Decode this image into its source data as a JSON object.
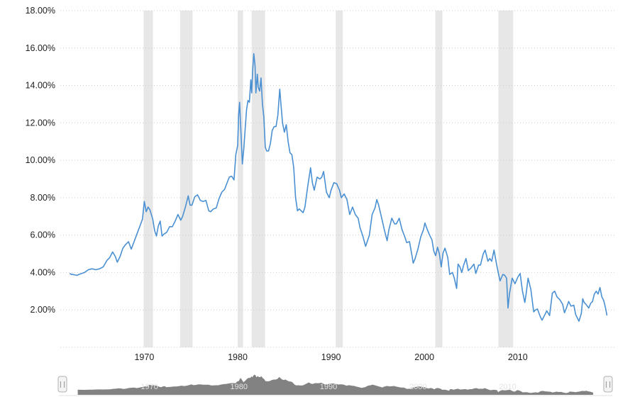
{
  "chart_data": {
    "type": "line",
    "title": "",
    "xlabel": "",
    "ylabel": "",
    "x_range": [
      1961.0,
      2020.5
    ],
    "y_range": [
      0,
      18
    ],
    "y_ticks": [
      2,
      4,
      6,
      8,
      10,
      12,
      14,
      16,
      18
    ],
    "y_tick_labels": [
      "2.00%",
      "4.00%",
      "6.00%",
      "8.00%",
      "10.00%",
      "12.00%",
      "14.00%",
      "16.00%",
      "18.00%"
    ],
    "x_ticks": [
      1970,
      1980,
      1990,
      2000,
      2010
    ],
    "x_tick_labels": [
      "1970",
      "1980",
      "1990",
      "2000",
      "2010"
    ],
    "grid": "horizontal-dotted",
    "legend": "none",
    "line_color": "#4a90d2",
    "grid_color": "#cccccc",
    "band_color": "#e7e7e7",
    "recession_bands": [
      [
        1969.92,
        1970.92
      ],
      [
        1973.83,
        1975.17
      ],
      [
        1980.0,
        1980.58
      ],
      [
        1981.5,
        1982.92
      ],
      [
        1990.5,
        1991.25
      ],
      [
        2001.17,
        2001.92
      ],
      [
        2007.92,
        2009.5
      ]
    ],
    "points": [
      [
        1962.0,
        3.95
      ],
      [
        1962.2,
        3.9
      ],
      [
        1962.5,
        3.88
      ],
      [
        1962.8,
        3.85
      ],
      [
        1963.0,
        3.9
      ],
      [
        1963.3,
        3.95
      ],
      [
        1963.6,
        4.0
      ],
      [
        1964.0,
        4.15
      ],
      [
        1964.4,
        4.2
      ],
      [
        1964.8,
        4.15
      ],
      [
        1965.2,
        4.2
      ],
      [
        1965.6,
        4.3
      ],
      [
        1966.0,
        4.65
      ],
      [
        1966.3,
        4.8
      ],
      [
        1966.6,
        5.1
      ],
      [
        1966.9,
        4.85
      ],
      [
        1967.1,
        4.55
      ],
      [
        1967.4,
        4.85
      ],
      [
        1967.7,
        5.3
      ],
      [
        1968.0,
        5.5
      ],
      [
        1968.3,
        5.65
      ],
      [
        1968.6,
        5.25
      ],
      [
        1968.9,
        5.65
      ],
      [
        1969.2,
        6.05
      ],
      [
        1969.5,
        6.45
      ],
      [
        1969.8,
        6.85
      ],
      [
        1970.0,
        7.8
      ],
      [
        1970.2,
        7.25
      ],
      [
        1970.4,
        7.5
      ],
      [
        1970.6,
        7.35
      ],
      [
        1970.9,
        6.85
      ],
      [
        1971.1,
        6.25
      ],
      [
        1971.3,
        5.95
      ],
      [
        1971.5,
        6.5
      ],
      [
        1971.7,
        6.75
      ],
      [
        1971.9,
        5.95
      ],
      [
        1972.1,
        6.05
      ],
      [
        1972.4,
        6.15
      ],
      [
        1972.7,
        6.45
      ],
      [
        1973.0,
        6.45
      ],
      [
        1973.3,
        6.75
      ],
      [
        1973.6,
        7.1
      ],
      [
        1973.9,
        6.8
      ],
      [
        1974.1,
        7.0
      ],
      [
        1974.4,
        7.5
      ],
      [
        1974.7,
        8.1
      ],
      [
        1974.9,
        7.6
      ],
      [
        1975.1,
        7.6
      ],
      [
        1975.4,
        8.05
      ],
      [
        1975.7,
        8.15
      ],
      [
        1976.0,
        7.85
      ],
      [
        1976.3,
        7.8
      ],
      [
        1976.6,
        7.85
      ],
      [
        1976.9,
        7.3
      ],
      [
        1977.1,
        7.25
      ],
      [
        1977.4,
        7.4
      ],
      [
        1977.7,
        7.45
      ],
      [
        1978.0,
        7.95
      ],
      [
        1978.3,
        8.3
      ],
      [
        1978.6,
        8.45
      ],
      [
        1978.9,
        8.85
      ],
      [
        1979.1,
        9.1
      ],
      [
        1979.35,
        9.15
      ],
      [
        1979.6,
        8.95
      ],
      [
        1979.8,
        10.3
      ],
      [
        1980.0,
        10.8
      ],
      [
        1980.1,
        12.4
      ],
      [
        1980.2,
        13.1
      ],
      [
        1980.35,
        11.5
      ],
      [
        1980.5,
        9.8
      ],
      [
        1980.65,
        10.6
      ],
      [
        1980.8,
        11.7
      ],
      [
        1980.95,
        12.7
      ],
      [
        1981.1,
        13.2
      ],
      [
        1981.25,
        13.1
      ],
      [
        1981.4,
        14.3
      ],
      [
        1981.5,
        13.6
      ],
      [
        1981.6,
        14.8
      ],
      [
        1981.72,
        15.7
      ],
      [
        1981.85,
        15.1
      ],
      [
        1981.95,
        13.6
      ],
      [
        1982.1,
        14.6
      ],
      [
        1982.2,
        13.9
      ],
      [
        1982.35,
        13.7
      ],
      [
        1982.5,
        14.4
      ],
      [
        1982.65,
        13.0
      ],
      [
        1982.8,
        12.3
      ],
      [
        1982.95,
        10.7
      ],
      [
        1983.1,
        10.5
      ],
      [
        1983.3,
        10.5
      ],
      [
        1983.5,
        10.9
      ],
      [
        1983.7,
        11.6
      ],
      [
        1983.9,
        11.8
      ],
      [
        1984.1,
        11.8
      ],
      [
        1984.3,
        12.4
      ],
      [
        1984.5,
        13.8
      ],
      [
        1984.65,
        12.9
      ],
      [
        1984.8,
        12.0
      ],
      [
        1985.0,
        11.5
      ],
      [
        1985.2,
        11.9
      ],
      [
        1985.4,
        11.0
      ],
      [
        1985.6,
        10.4
      ],
      [
        1985.8,
        10.3
      ],
      [
        1986.0,
        9.6
      ],
      [
        1986.2,
        8.0
      ],
      [
        1986.4,
        7.3
      ],
      [
        1986.6,
        7.4
      ],
      [
        1986.8,
        7.3
      ],
      [
        1987.0,
        7.2
      ],
      [
        1987.2,
        7.5
      ],
      [
        1987.5,
        8.6
      ],
      [
        1987.8,
        9.6
      ],
      [
        1988.0,
        8.8
      ],
      [
        1988.2,
        8.4
      ],
      [
        1988.5,
        9.1
      ],
      [
        1988.8,
        9.0
      ],
      [
        1989.0,
        9.1
      ],
      [
        1989.2,
        9.4
      ],
      [
        1989.5,
        8.3
      ],
      [
        1989.8,
        8.0
      ],
      [
        1990.0,
        8.4
      ],
      [
        1990.3,
        8.8
      ],
      [
        1990.6,
        8.75
      ],
      [
        1990.9,
        8.4
      ],
      [
        1991.1,
        8.0
      ],
      [
        1991.4,
        8.2
      ],
      [
        1991.7,
        7.9
      ],
      [
        1992.0,
        7.1
      ],
      [
        1992.3,
        7.5
      ],
      [
        1992.6,
        7.1
      ],
      [
        1992.9,
        6.9
      ],
      [
        1993.1,
        6.4
      ],
      [
        1993.4,
        5.95
      ],
      [
        1993.7,
        5.4
      ],
      [
        1993.9,
        5.7
      ],
      [
        1994.1,
        6.0
      ],
      [
        1994.4,
        7.1
      ],
      [
        1994.7,
        7.45
      ],
      [
        1994.9,
        7.9
      ],
      [
        1995.1,
        7.6
      ],
      [
        1995.4,
        6.95
      ],
      [
        1995.7,
        6.3
      ],
      [
        1996.0,
        5.7
      ],
      [
        1996.2,
        6.3
      ],
      [
        1996.5,
        6.9
      ],
      [
        1996.8,
        6.6
      ],
      [
        1997.0,
        6.6
      ],
      [
        1997.3,
        6.9
      ],
      [
        1997.6,
        6.3
      ],
      [
        1997.9,
        5.9
      ],
      [
        1998.1,
        5.6
      ],
      [
        1998.4,
        5.65
      ],
      [
        1998.7,
        4.8
      ],
      [
        1998.8,
        4.5
      ],
      [
        1999.0,
        4.75
      ],
      [
        1999.3,
        5.25
      ],
      [
        1999.6,
        5.9
      ],
      [
        1999.9,
        6.3
      ],
      [
        2000.05,
        6.65
      ],
      [
        2000.3,
        6.3
      ],
      [
        2000.55,
        6.0
      ],
      [
        2000.8,
        5.75
      ],
      [
        2001.0,
        5.15
      ],
      [
        2001.2,
        4.9
      ],
      [
        2001.4,
        5.35
      ],
      [
        2001.6,
        5.0
      ],
      [
        2001.8,
        4.3
      ],
      [
        2002.0,
        5.05
      ],
      [
        2002.2,
        5.3
      ],
      [
        2002.5,
        4.8
      ],
      [
        2002.7,
        3.9
      ],
      [
        2003.0,
        4.0
      ],
      [
        2003.2,
        3.7
      ],
      [
        2003.45,
        3.15
      ],
      [
        2003.6,
        4.45
      ],
      [
        2003.8,
        4.3
      ],
      [
        2004.0,
        4.0
      ],
      [
        2004.2,
        4.4
      ],
      [
        2004.45,
        4.75
      ],
      [
        2004.7,
        4.1
      ],
      [
        2005.0,
        4.25
      ],
      [
        2005.3,
        4.45
      ],
      [
        2005.5,
        3.95
      ],
      [
        2005.8,
        4.4
      ],
      [
        2006.0,
        4.4
      ],
      [
        2006.3,
        5.0
      ],
      [
        2006.5,
        5.2
      ],
      [
        2006.8,
        4.6
      ],
      [
        2007.0,
        4.75
      ],
      [
        2007.2,
        4.6
      ],
      [
        2007.45,
        5.2
      ],
      [
        2007.7,
        4.5
      ],
      [
        2007.9,
        4.0
      ],
      [
        2008.1,
        3.55
      ],
      [
        2008.4,
        3.9
      ],
      [
        2008.6,
        3.85
      ],
      [
        2008.8,
        3.7
      ],
      [
        2008.95,
        2.1
      ],
      [
        2009.1,
        2.85
      ],
      [
        2009.4,
        3.7
      ],
      [
        2009.7,
        3.4
      ],
      [
        2010.0,
        3.75
      ],
      [
        2010.25,
        3.95
      ],
      [
        2010.5,
        3.0
      ],
      [
        2010.75,
        2.4
      ],
      [
        2010.9,
        2.9
      ],
      [
        2011.1,
        3.7
      ],
      [
        2011.4,
        3.1
      ],
      [
        2011.7,
        1.9
      ],
      [
        2011.9,
        2.0
      ],
      [
        2012.1,
        2.05
      ],
      [
        2012.4,
        1.65
      ],
      [
        2012.6,
        1.45
      ],
      [
        2012.9,
        1.75
      ],
      [
        2013.1,
        1.95
      ],
      [
        2013.4,
        1.7
      ],
      [
        2013.7,
        2.9
      ],
      [
        2013.95,
        3.0
      ],
      [
        2014.2,
        2.7
      ],
      [
        2014.5,
        2.55
      ],
      [
        2014.8,
        2.3
      ],
      [
        2015.0,
        1.85
      ],
      [
        2015.2,
        2.1
      ],
      [
        2015.45,
        2.45
      ],
      [
        2015.7,
        2.2
      ],
      [
        2016.0,
        2.25
      ],
      [
        2016.2,
        1.75
      ],
      [
        2016.55,
        1.4
      ],
      [
        2016.8,
        1.8
      ],
      [
        2016.95,
        2.6
      ],
      [
        2017.1,
        2.4
      ],
      [
        2017.3,
        2.3
      ],
      [
        2017.6,
        2.1
      ],
      [
        2017.8,
        2.35
      ],
      [
        2018.0,
        2.45
      ],
      [
        2018.2,
        2.85
      ],
      [
        2018.4,
        3.0
      ],
      [
        2018.6,
        2.85
      ],
      [
        2018.8,
        3.2
      ],
      [
        2019.0,
        2.7
      ],
      [
        2019.2,
        2.5
      ],
      [
        2019.4,
        2.1
      ],
      [
        2019.55,
        1.7
      ]
    ]
  },
  "navigator": {
    "labels": [
      "1970",
      "1980",
      "1990",
      "2000",
      "2010"
    ],
    "area_color": "#828282",
    "track_color": "#e0e0e0",
    "handle_glyph": "||"
  }
}
